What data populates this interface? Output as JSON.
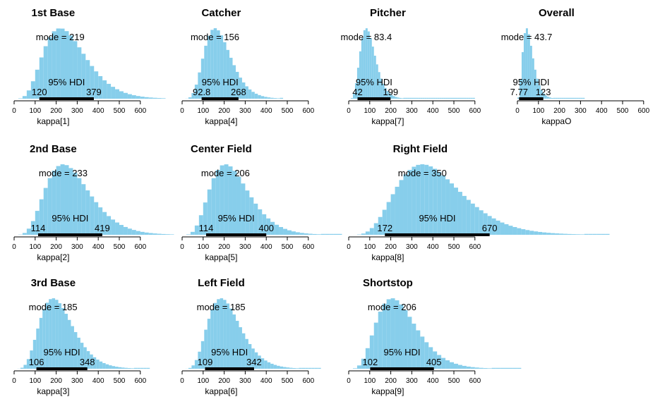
{
  "colors": {
    "bar": "#87ceeb",
    "hdi_bar": "#000000",
    "axis": "#000000"
  },
  "chart_data": [
    {
      "type": "bar",
      "title": "1st Base",
      "xlabel": "kappa[1]",
      "ticks": [
        0,
        100,
        200,
        300,
        400,
        500,
        600
      ],
      "xlim": [
        0,
        600
      ],
      "mode": 219,
      "mode_label": "mode = 219",
      "hdi_label": "95% HDI",
      "hdi_low": 120,
      "hdi_high": 379,
      "hdi_low_label": "120",
      "hdi_high_label": "379",
      "tail_max": 720,
      "shape": "gamma",
      "spread": 85
    },
    {
      "type": "bar",
      "title": "Catcher",
      "xlabel": "kappa[4]",
      "ticks": [
        0,
        100,
        200,
        300,
        400,
        500,
        600
      ],
      "xlim": [
        0,
        600
      ],
      "mode": 156,
      "mode_label": "mode = 156",
      "hdi_label": "95% HDI",
      "hdi_low": 92.8,
      "hdi_high": 268,
      "hdi_low_label": "92.8",
      "hdi_high_label": "268",
      "tail_max": 480,
      "shape": "gamma",
      "spread": 52
    },
    {
      "type": "bar",
      "title": "Pitcher",
      "xlabel": "kappa[7]",
      "ticks": [
        0,
        100,
        200,
        300,
        400,
        500,
        600
      ],
      "xlim": [
        0,
        600
      ],
      "mode": 83.4,
      "mode_label": "mode = 83.4",
      "hdi_label": "95% HDI",
      "hdi_low": 42,
      "hdi_high": 199,
      "hdi_low_label": "42",
      "hdi_high_label": "199",
      "tail_max": 600,
      "shape": "gamma",
      "spread": 30
    },
    {
      "type": "bar",
      "title": "Overall",
      "xlabel": "kappaO",
      "ticks": [
        0,
        100,
        200,
        300,
        400,
        500,
        600
      ],
      "xlim": [
        0,
        600
      ],
      "mode": 43.7,
      "mode_label": "mode = 43.7",
      "hdi_label": "95% HDI",
      "hdi_low": 7.77,
      "hdi_high": 123,
      "hdi_low_label": "7.77",
      "hdi_high_label": "123",
      "tail_max": 320,
      "shape": "gamma",
      "spread": 22
    },
    {
      "type": "bar",
      "title": "2nd Base",
      "xlabel": "kappa[2]",
      "ticks": [
        0,
        100,
        200,
        300,
        400,
        500,
        600
      ],
      "xlim": [
        0,
        600
      ],
      "mode": 233,
      "mode_label": "mode = 233",
      "hdi_label": "95% HDI",
      "hdi_low": 114,
      "hdi_high": 419,
      "hdi_low_label": "114",
      "hdi_high_label": "419",
      "tail_max": 760,
      "shape": "gamma",
      "spread": 88
    },
    {
      "type": "bar",
      "title": "Center Field",
      "xlabel": "kappa[5]",
      "ticks": [
        0,
        100,
        200,
        300,
        400,
        500,
        600
      ],
      "xlim": [
        0,
        600
      ],
      "mode": 206,
      "mode_label": "mode = 206",
      "hdi_label": "95% HDI",
      "hdi_low": 114,
      "hdi_high": 400,
      "hdi_low_label": "114",
      "hdi_high_label": "400",
      "tail_max": 760,
      "shape": "gamma",
      "spread": 78
    },
    {
      "type": "bar",
      "title": "Right Field",
      "xlabel": "kappa[8]",
      "ticks": [
        0,
        100,
        200,
        300,
        400,
        500,
        600
      ],
      "xlim": [
        0,
        600
      ],
      "mode": 350,
      "mode_label": "mode = 350",
      "hdi_label": "95% HDI",
      "hdi_low": 172,
      "hdi_high": 670,
      "hdi_low_label": "172",
      "hdi_high_label": "670",
      "tail_max": 1240,
      "shape": "gamma",
      "spread": 130
    },
    {
      "type": "bar",
      "title": "3rd Base",
      "xlabel": "kappa[3]",
      "ticks": [
        0,
        100,
        200,
        300,
        400,
        500,
        600
      ],
      "xlim": [
        0,
        600
      ],
      "mode": 185,
      "mode_label": "mode = 185",
      "hdi_label": "95% HDI",
      "hdi_low": 106,
      "hdi_high": 348,
      "hdi_low_label": "106",
      "hdi_high_label": "348",
      "tail_max": 640,
      "shape": "gamma",
      "spread": 66
    },
    {
      "type": "bar",
      "title": "Left Field",
      "xlabel": "kappa[6]",
      "ticks": [
        0,
        100,
        200,
        300,
        400,
        500,
        600
      ],
      "xlim": [
        0,
        600
      ],
      "mode": 185,
      "mode_label": "mode = 185",
      "hdi_label": "95% HDI",
      "hdi_low": 109,
      "hdi_high": 342,
      "hdi_low_label": "109",
      "hdi_high_label": "342",
      "tail_max": 660,
      "shape": "gamma",
      "spread": 64
    },
    {
      "type": "bar",
      "title": "Shortstop",
      "xlabel": "kappa[9]",
      "ticks": [
        0,
        100,
        200,
        300,
        400,
        500,
        600
      ],
      "xlim": [
        0,
        600
      ],
      "mode": 206,
      "mode_label": "mode = 206",
      "hdi_label": "95% HDI",
      "hdi_low": 102,
      "hdi_high": 405,
      "hdi_low_label": "102",
      "hdi_high_label": "405",
      "tail_max": 820,
      "shape": "gamma",
      "spread": 80
    }
  ]
}
